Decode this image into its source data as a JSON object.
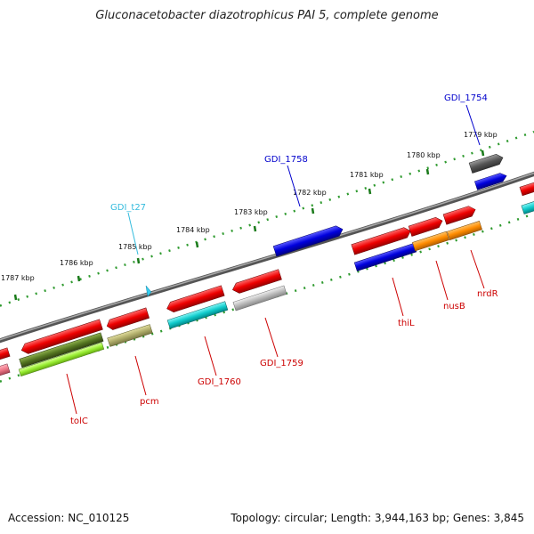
{
  "title": "Gluconacetobacter diazotrophicus PAI 5, complete genome",
  "footer": {
    "accession": "Accession: NC_010125",
    "topology": "Topology: circular; Length: 3,944,163 bp; Genes: 3,845"
  },
  "scale_labels": [
    "1787 kbp",
    "1786 kbp",
    "1785 kbp",
    "1784 kbp",
    "1783 kbp",
    "1782 kbp",
    "1781 kbp",
    "1780 kbp",
    "1779 kbp"
  ],
  "gene_labels": {
    "top": [
      {
        "text": "GDI_t27",
        "color": "#33bbdd"
      },
      {
        "text": "GDI_1758",
        "color": "#0000cc"
      },
      {
        "text": "GDI_1754",
        "color": "#0000cc"
      }
    ],
    "bottom": [
      {
        "text": "tolC",
        "color": "#cc0000"
      },
      {
        "text": "pcm",
        "color": "#cc0000"
      },
      {
        "text": "GDI_1760",
        "color": "#cc0000"
      },
      {
        "text": "GDI_1759",
        "color": "#cc0000"
      },
      {
        "text": "thiL",
        "color": "#cc0000"
      },
      {
        "text": "nusB",
        "color": "#cc0000"
      },
      {
        "text": "nrdR",
        "color": "#cc0000"
      }
    ]
  },
  "colors": {
    "backbone": "#7a7a7a",
    "ticks_major": "#1a7a1a",
    "ticks_minor": "#2e9a2e",
    "red": "#ee1111",
    "blue": "#1111dd",
    "cyan": "#11cccc",
    "olive": "#b0ad6a",
    "green": "#99ee33",
    "dark_green": "#557722",
    "orange": "#ff8c00",
    "gray": "#bbbbbb",
    "dark_gray": "#555555",
    "pink": "#ee7788"
  }
}
